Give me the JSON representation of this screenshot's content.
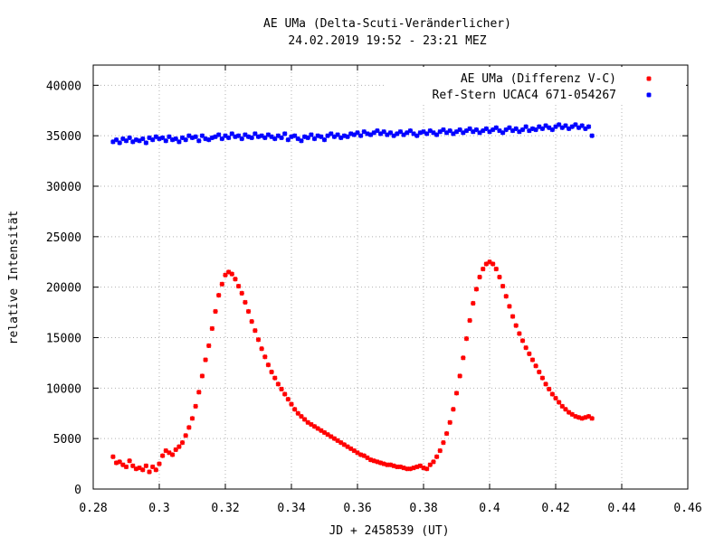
{
  "chart_data": {
    "type": "scatter",
    "title": "AE UMa (Delta-Scuti-Veränderlicher)",
    "subtitle": "24.02.2019 19:52 - 23:21 MEZ",
    "xlabel": "JD + 2458539 (UT)",
    "ylabel": "relative Intensität",
    "xlim": [
      0.28,
      0.46
    ],
    "ylim": [
      0,
      42000
    ],
    "x_ticks": [
      0.28,
      0.3,
      0.32,
      0.34,
      0.36,
      0.38,
      0.4,
      0.42,
      0.44,
      0.46
    ],
    "x_tick_labels": [
      "0.28",
      "0.3",
      "0.32",
      "0.34",
      "0.36",
      "0.38",
      "0.4",
      "0.42",
      "0.44",
      "0.46"
    ],
    "y_ticks": [
      0,
      5000,
      10000,
      15000,
      20000,
      25000,
      30000,
      35000,
      40000
    ],
    "y_tick_labels": [
      "0",
      "5000",
      "10000",
      "15000",
      "20000",
      "25000",
      "30000",
      "35000",
      "40000"
    ],
    "grid": true,
    "legend_position": "top-right",
    "series": [
      {
        "name": "AE UMa (Differenz V-C)",
        "color": "#ff0000",
        "x": [
          0.286,
          0.287,
          0.288,
          0.289,
          0.29,
          0.291,
          0.292,
          0.293,
          0.294,
          0.295,
          0.296,
          0.297,
          0.298,
          0.299,
          0.3,
          0.301,
          0.302,
          0.303,
          0.304,
          0.305,
          0.306,
          0.307,
          0.308,
          0.309,
          0.31,
          0.311,
          0.312,
          0.313,
          0.314,
          0.315,
          0.316,
          0.317,
          0.318,
          0.319,
          0.32,
          0.321,
          0.322,
          0.323,
          0.324,
          0.325,
          0.326,
          0.327,
          0.328,
          0.329,
          0.33,
          0.331,
          0.332,
          0.333,
          0.334,
          0.335,
          0.336,
          0.337,
          0.338,
          0.339,
          0.34,
          0.341,
          0.342,
          0.343,
          0.344,
          0.345,
          0.346,
          0.347,
          0.348,
          0.349,
          0.35,
          0.351,
          0.352,
          0.353,
          0.354,
          0.355,
          0.356,
          0.357,
          0.358,
          0.359,
          0.36,
          0.361,
          0.362,
          0.363,
          0.364,
          0.365,
          0.366,
          0.367,
          0.368,
          0.369,
          0.37,
          0.371,
          0.372,
          0.373,
          0.374,
          0.375,
          0.376,
          0.377,
          0.378,
          0.379,
          0.38,
          0.381,
          0.382,
          0.383,
          0.384,
          0.385,
          0.386,
          0.387,
          0.388,
          0.389,
          0.39,
          0.391,
          0.392,
          0.393,
          0.394,
          0.395,
          0.396,
          0.397,
          0.398,
          0.399,
          0.4,
          0.401,
          0.402,
          0.403,
          0.404,
          0.405,
          0.406,
          0.407,
          0.408,
          0.409,
          0.41,
          0.411,
          0.412,
          0.413,
          0.414,
          0.415,
          0.416,
          0.417,
          0.418,
          0.419,
          0.42,
          0.421,
          0.422,
          0.423,
          0.424,
          0.425,
          0.426,
          0.427,
          0.428,
          0.429,
          0.43,
          0.431
        ],
        "values": [
          3200,
          2600,
          2700,
          2400,
          2200,
          2800,
          2300,
          2000,
          2100,
          1900,
          2300,
          1700,
          2200,
          1900,
          2500,
          3300,
          3800,
          3600,
          3400,
          3900,
          4200,
          4600,
          5300,
          6100,
          7000,
          8200,
          9600,
          11200,
          12800,
          14200,
          15900,
          17600,
          19200,
          20300,
          21200,
          21500,
          21300,
          20800,
          20100,
          19400,
          18500,
          17600,
          16600,
          15700,
          14800,
          13900,
          13100,
          12300,
          11600,
          11000,
          10400,
          9900,
          9400,
          8900,
          8400,
          7900,
          7500,
          7200,
          6900,
          6600,
          6400,
          6200,
          6000,
          5800,
          5600,
          5400,
          5200,
          5000,
          4800,
          4600,
          4400,
          4200,
          4000,
          3800,
          3600,
          3400,
          3300,
          3100,
          2900,
          2800,
          2700,
          2600,
          2500,
          2400,
          2400,
          2300,
          2200,
          2200,
          2100,
          2000,
          2000,
          2100,
          2200,
          2300,
          2100,
          2000,
          2400,
          2700,
          3200,
          3800,
          4600,
          5500,
          6600,
          7900,
          9500,
          11200,
          13000,
          14900,
          16700,
          18400,
          19800,
          21000,
          21800,
          22300,
          22500,
          22300,
          21800,
          21000,
          20100,
          19100,
          18100,
          17100,
          16200,
          15400,
          14700,
          14000,
          13400,
          12800,
          12200,
          11600,
          11000,
          10400,
          9900,
          9400,
          9000,
          8600,
          8200,
          7900,
          7600,
          7400,
          7200,
          7100,
          7000,
          7100,
          7200,
          7000
        ]
      },
      {
        "name": "Ref-Stern UCAC4 671-054267",
        "color": "#0000ff",
        "x": [
          0.286,
          0.287,
          0.288,
          0.289,
          0.29,
          0.291,
          0.292,
          0.293,
          0.294,
          0.295,
          0.296,
          0.297,
          0.298,
          0.299,
          0.3,
          0.301,
          0.302,
          0.303,
          0.304,
          0.305,
          0.306,
          0.307,
          0.308,
          0.309,
          0.31,
          0.311,
          0.312,
          0.313,
          0.314,
          0.315,
          0.316,
          0.317,
          0.318,
          0.319,
          0.32,
          0.321,
          0.322,
          0.323,
          0.324,
          0.325,
          0.326,
          0.327,
          0.328,
          0.329,
          0.33,
          0.331,
          0.332,
          0.333,
          0.334,
          0.335,
          0.336,
          0.337,
          0.338,
          0.339,
          0.34,
          0.341,
          0.342,
          0.343,
          0.344,
          0.345,
          0.346,
          0.347,
          0.348,
          0.349,
          0.35,
          0.351,
          0.352,
          0.353,
          0.354,
          0.355,
          0.356,
          0.357,
          0.358,
          0.359,
          0.36,
          0.361,
          0.362,
          0.363,
          0.364,
          0.365,
          0.366,
          0.367,
          0.368,
          0.369,
          0.37,
          0.371,
          0.372,
          0.373,
          0.374,
          0.375,
          0.376,
          0.377,
          0.378,
          0.379,
          0.38,
          0.381,
          0.382,
          0.383,
          0.384,
          0.385,
          0.386,
          0.387,
          0.388,
          0.389,
          0.39,
          0.391,
          0.392,
          0.393,
          0.394,
          0.395,
          0.396,
          0.397,
          0.398,
          0.399,
          0.4,
          0.401,
          0.402,
          0.403,
          0.404,
          0.405,
          0.406,
          0.407,
          0.408,
          0.409,
          0.41,
          0.411,
          0.412,
          0.413,
          0.414,
          0.415,
          0.416,
          0.417,
          0.418,
          0.419,
          0.42,
          0.421,
          0.422,
          0.423,
          0.424,
          0.425,
          0.426,
          0.427,
          0.428,
          0.429,
          0.43,
          0.431
        ],
        "values": [
          34400,
          34600,
          34300,
          34700,
          34500,
          34800,
          34400,
          34600,
          34500,
          34700,
          34300,
          34800,
          34600,
          34900,
          34700,
          34800,
          34500,
          34900,
          34600,
          34700,
          34400,
          34800,
          34600,
          35000,
          34800,
          34900,
          34500,
          35000,
          34700,
          34600,
          34800,
          34900,
          35100,
          34700,
          35000,
          34800,
          35200,
          34900,
          35000,
          34700,
          35100,
          34900,
          34800,
          35200,
          34900,
          35000,
          34800,
          35100,
          34900,
          34700,
          35000,
          34800,
          35200,
          34600,
          34900,
          35000,
          34700,
          34500,
          34900,
          34800,
          35100,
          34700,
          35000,
          34900,
          34600,
          35000,
          35200,
          34900,
          35100,
          34800,
          35000,
          34900,
          35200,
          35100,
          35300,
          35000,
          35400,
          35200,
          35100,
          35300,
          35500,
          35200,
          35400,
          35100,
          35300,
          35000,
          35200,
          35400,
          35100,
          35300,
          35500,
          35200,
          35000,
          35300,
          35400,
          35200,
          35500,
          35300,
          35100,
          35400,
          35600,
          35300,
          35500,
          35200,
          35400,
          35600,
          35300,
          35500,
          35700,
          35400,
          35600,
          35300,
          35500,
          35700,
          35400,
          35600,
          35800,
          35500,
          35300,
          35600,
          35800,
          35500,
          35700,
          35400,
          35600,
          35900,
          35500,
          35700,
          35600,
          35900,
          35700,
          36000,
          35800,
          35600,
          35900,
          36100,
          35800,
          36000,
          35700,
          35900,
          36100,
          35800,
          36000,
          35700,
          35900,
          35000
        ]
      }
    ]
  }
}
